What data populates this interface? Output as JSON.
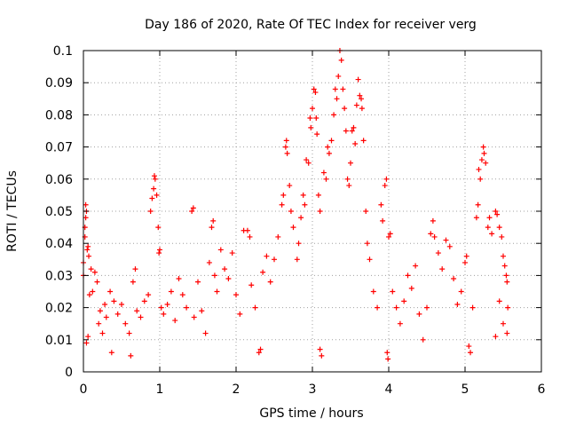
{
  "chart_data": {
    "type": "scatter",
    "title": "Day 186 of 2020, Rate Of TEC Index for receiver verg",
    "xlabel": "GPS time / hours",
    "ylabel": "ROTI / TECUs",
    "xlim": [
      0,
      6
    ],
    "ylim": [
      0,
      0.1
    ],
    "xticks": [
      "0",
      "1",
      "2",
      "3",
      "4",
      "5",
      "6"
    ],
    "yticks": [
      "0",
      "0.01",
      "0.02",
      "0.03",
      "0.04",
      "0.05",
      "0.06",
      "0.07",
      "0.08",
      "0.09",
      "0.1"
    ],
    "grid": true,
    "marker": "+",
    "series_color": "#ff0000",
    "series": [
      {
        "name": "ROTI",
        "points": [
          [
            0.0,
            0.03
          ],
          [
            0.0,
            0.034
          ],
          [
            0.02,
            0.042
          ],
          [
            0.02,
            0.045
          ],
          [
            0.03,
            0.048
          ],
          [
            0.03,
            0.052
          ],
          [
            0.04,
            0.05
          ],
          [
            0.05,
            0.038
          ],
          [
            0.06,
            0.039
          ],
          [
            0.07,
            0.036
          ],
          [
            0.04,
            0.009
          ],
          [
            0.06,
            0.011
          ],
          [
            0.08,
            0.024
          ],
          [
            0.1,
            0.032
          ],
          [
            0.12,
            0.025
          ],
          [
            0.15,
            0.031
          ],
          [
            0.18,
            0.028
          ],
          [
            0.2,
            0.015
          ],
          [
            0.22,
            0.019
          ],
          [
            0.25,
            0.012
          ],
          [
            0.28,
            0.021
          ],
          [
            0.3,
            0.017
          ],
          [
            0.35,
            0.025
          ],
          [
            0.37,
            0.006
          ],
          [
            0.4,
            0.022
          ],
          [
            0.45,
            0.018
          ],
          [
            0.5,
            0.021
          ],
          [
            0.55,
            0.015
          ],
          [
            0.6,
            0.012
          ],
          [
            0.62,
            0.005
          ],
          [
            0.65,
            0.028
          ],
          [
            0.68,
            0.032
          ],
          [
            0.7,
            0.019
          ],
          [
            0.75,
            0.017
          ],
          [
            0.8,
            0.022
          ],
          [
            0.85,
            0.024
          ],
          [
            0.88,
            0.05
          ],
          [
            0.9,
            0.054
          ],
          [
            0.92,
            0.057
          ],
          [
            0.93,
            0.061
          ],
          [
            0.94,
            0.06
          ],
          [
            0.96,
            0.055
          ],
          [
            0.98,
            0.045
          ],
          [
            0.99,
            0.037
          ],
          [
            1.0,
            0.038
          ],
          [
            1.02,
            0.02
          ],
          [
            1.05,
            0.018
          ],
          [
            1.1,
            0.021
          ],
          [
            1.15,
            0.025
          ],
          [
            1.2,
            0.016
          ],
          [
            1.25,
            0.029
          ],
          [
            1.3,
            0.024
          ],
          [
            1.35,
            0.02
          ],
          [
            1.42,
            0.05
          ],
          [
            1.44,
            0.051
          ],
          [
            1.45,
            0.017
          ],
          [
            1.5,
            0.028
          ],
          [
            1.55,
            0.019
          ],
          [
            1.6,
            0.012
          ],
          [
            1.65,
            0.034
          ],
          [
            1.68,
            0.045
          ],
          [
            1.7,
            0.047
          ],
          [
            1.72,
            0.03
          ],
          [
            1.75,
            0.025
          ],
          [
            1.8,
            0.038
          ],
          [
            1.85,
            0.032
          ],
          [
            1.9,
            0.029
          ],
          [
            1.95,
            0.037
          ],
          [
            2.0,
            0.024
          ],
          [
            2.05,
            0.018
          ],
          [
            2.1,
            0.044
          ],
          [
            2.15,
            0.044
          ],
          [
            2.18,
            0.042
          ],
          [
            2.2,
            0.027
          ],
          [
            2.25,
            0.02
          ],
          [
            2.3,
            0.006
          ],
          [
            2.32,
            0.007
          ],
          [
            2.35,
            0.031
          ],
          [
            2.4,
            0.036
          ],
          [
            2.45,
            0.028
          ],
          [
            2.5,
            0.035
          ],
          [
            2.55,
            0.042
          ],
          [
            2.6,
            0.052
          ],
          [
            2.62,
            0.055
          ],
          [
            2.65,
            0.07
          ],
          [
            2.66,
            0.072
          ],
          [
            2.67,
            0.068
          ],
          [
            2.7,
            0.058
          ],
          [
            2.72,
            0.05
          ],
          [
            2.75,
            0.045
          ],
          [
            2.8,
            0.035
          ],
          [
            2.82,
            0.04
          ],
          [
            2.85,
            0.048
          ],
          [
            2.88,
            0.055
          ],
          [
            2.9,
            0.052
          ],
          [
            2.92,
            0.066
          ],
          [
            2.95,
            0.065
          ],
          [
            2.97,
            0.079
          ],
          [
            2.98,
            0.076
          ],
          [
            3.0,
            0.082
          ],
          [
            3.02,
            0.088
          ],
          [
            3.04,
            0.087
          ],
          [
            3.05,
            0.079
          ],
          [
            3.06,
            0.074
          ],
          [
            3.08,
            0.055
          ],
          [
            3.1,
            0.05
          ],
          [
            3.1,
            0.007
          ],
          [
            3.12,
            0.005
          ],
          [
            3.15,
            0.062
          ],
          [
            3.18,
            0.06
          ],
          [
            3.2,
            0.07
          ],
          [
            3.22,
            0.068
          ],
          [
            3.25,
            0.072
          ],
          [
            3.28,
            0.08
          ],
          [
            3.3,
            0.088
          ],
          [
            3.32,
            0.085
          ],
          [
            3.34,
            0.092
          ],
          [
            3.36,
            0.1
          ],
          [
            3.38,
            0.097
          ],
          [
            3.4,
            0.088
          ],
          [
            3.42,
            0.082
          ],
          [
            3.44,
            0.075
          ],
          [
            3.46,
            0.06
          ],
          [
            3.48,
            0.058
          ],
          [
            3.5,
            0.065
          ],
          [
            3.52,
            0.075
          ],
          [
            3.54,
            0.076
          ],
          [
            3.56,
            0.071
          ],
          [
            3.58,
            0.083
          ],
          [
            3.6,
            0.091
          ],
          [
            3.62,
            0.086
          ],
          [
            3.64,
            0.085
          ],
          [
            3.65,
            0.082
          ],
          [
            3.67,
            0.072
          ],
          [
            3.7,
            0.05
          ],
          [
            3.72,
            0.04
          ],
          [
            3.75,
            0.035
          ],
          [
            3.8,
            0.025
          ],
          [
            3.85,
            0.02
          ],
          [
            3.9,
            0.052
          ],
          [
            3.92,
            0.047
          ],
          [
            3.95,
            0.058
          ],
          [
            3.97,
            0.06
          ],
          [
            4.0,
            0.042
          ],
          [
            4.02,
            0.043
          ],
          [
            3.98,
            0.006
          ],
          [
            3.99,
            0.004
          ],
          [
            4.05,
            0.025
          ],
          [
            4.1,
            0.02
          ],
          [
            4.15,
            0.015
          ],
          [
            4.2,
            0.022
          ],
          [
            4.25,
            0.03
          ],
          [
            4.3,
            0.026
          ],
          [
            4.35,
            0.033
          ],
          [
            4.4,
            0.018
          ],
          [
            4.45,
            0.01
          ],
          [
            4.5,
            0.02
          ],
          [
            4.55,
            0.043
          ],
          [
            4.58,
            0.047
          ],
          [
            4.6,
            0.042
          ],
          [
            4.65,
            0.037
          ],
          [
            4.7,
            0.032
          ],
          [
            4.75,
            0.041
          ],
          [
            4.8,
            0.039
          ],
          [
            4.85,
            0.029
          ],
          [
            4.9,
            0.021
          ],
          [
            4.95,
            0.025
          ],
          [
            5.0,
            0.034
          ],
          [
            5.02,
            0.036
          ],
          [
            5.05,
            0.008
          ],
          [
            5.07,
            0.006
          ],
          [
            5.1,
            0.02
          ],
          [
            5.15,
            0.048
          ],
          [
            5.17,
            0.052
          ],
          [
            5.18,
            0.063
          ],
          [
            5.2,
            0.06
          ],
          [
            5.22,
            0.066
          ],
          [
            5.24,
            0.07
          ],
          [
            5.25,
            0.068
          ],
          [
            5.27,
            0.065
          ],
          [
            5.3,
            0.045
          ],
          [
            5.32,
            0.048
          ],
          [
            5.35,
            0.043
          ],
          [
            5.4,
            0.05
          ],
          [
            5.42,
            0.049
          ],
          [
            5.45,
            0.045
          ],
          [
            5.48,
            0.042
          ],
          [
            5.5,
            0.036
          ],
          [
            5.52,
            0.033
          ],
          [
            5.54,
            0.03
          ],
          [
            5.55,
            0.028
          ],
          [
            5.55,
            0.012
          ],
          [
            5.56,
            0.02
          ],
          [
            5.5,
            0.015
          ],
          [
            5.45,
            0.022
          ],
          [
            5.4,
            0.011
          ]
        ]
      }
    ]
  }
}
